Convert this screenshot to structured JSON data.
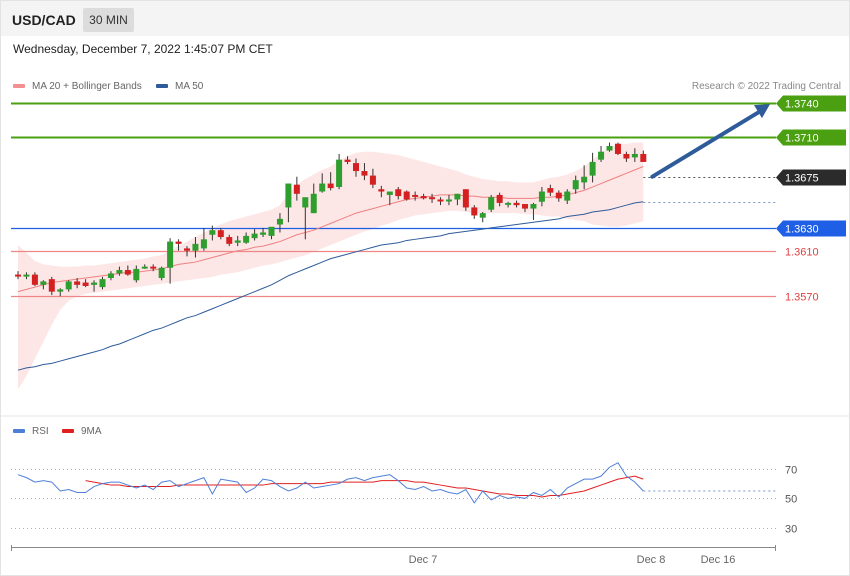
{
  "header": {
    "symbol": "USD/CAD",
    "timeframe": "30 MIN"
  },
  "timestamp": "Wednesday, December 7, 2022 1:45:07 PM CET",
  "legend": {
    "ma20": {
      "label": "MA 20 + Bollinger Bands",
      "color": "#f08080"
    },
    "ma50": {
      "label": "MA 50",
      "color": "#2f5b9a"
    }
  },
  "credit": "Research © 2022 Trading Central",
  "rsi_legend": {
    "rsi": {
      "label": "RSI",
      "color": "#4f7fd8"
    },
    "ma9": {
      "label": "9MA",
      "color": "#e02020"
    }
  },
  "colors": {
    "up": "#2e9e2e",
    "down": "#d42020",
    "resistance": "#4aa010",
    "support_blue": "#1e5fe6",
    "support_red": "#e04040"
  },
  "chart_data": [
    {
      "type": "candlestick",
      "y_range": [
        1.347,
        1.376
      ],
      "x_labels": [
        "Dec 7",
        "Dec 8",
        "Dec 16"
      ],
      "levels": [
        {
          "label": "1.3740",
          "value": 1.374,
          "style": "resistance"
        },
        {
          "label": "1.3710",
          "value": 1.371,
          "style": "resistance"
        },
        {
          "label": "1.3675",
          "value": 1.3675,
          "style": "current"
        },
        {
          "label": "1.3630",
          "value": 1.363,
          "style": "support_blue"
        },
        {
          "label": "1.3610",
          "value": 1.361,
          "style": "support_red"
        },
        {
          "label": "1.3570",
          "value": 1.357,
          "style": "support_red"
        }
      ],
      "candles": [
        [
          1.3589,
          1.3592,
          1.3585,
          1.3588
        ],
        [
          1.3588,
          1.3591,
          1.3585,
          1.3589
        ],
        [
          1.3589,
          1.3591,
          1.3579,
          1.358
        ],
        [
          1.358,
          1.3584,
          1.3576,
          1.3583
        ],
        [
          1.3585,
          1.3587,
          1.3571,
          1.3574
        ],
        [
          1.3574,
          1.3577,
          1.357,
          1.3576
        ],
        [
          1.3576,
          1.3584,
          1.3574,
          1.3583
        ],
        [
          1.3583,
          1.3586,
          1.3577,
          1.358
        ],
        [
          1.3582,
          1.3585,
          1.3578,
          1.3579
        ],
        [
          1.358,
          1.3584,
          1.3574,
          1.3582
        ],
        [
          1.3578,
          1.3587,
          1.3576,
          1.3585
        ],
        [
          1.3586,
          1.3592,
          1.3584,
          1.359
        ],
        [
          1.359,
          1.3596,
          1.3588,
          1.3593
        ],
        [
          1.3593,
          1.3597,
          1.3588,
          1.3589
        ],
        [
          1.3584,
          1.3597,
          1.3582,
          1.3594
        ],
        [
          1.3596,
          1.3598,
          1.3594,
          1.3596
        ],
        [
          1.3596,
          1.3598,
          1.3592,
          1.3595
        ],
        [
          1.3586,
          1.3596,
          1.3584,
          1.3595
        ],
        [
          1.3595,
          1.3621,
          1.3581,
          1.3618
        ],
        [
          1.3618,
          1.362,
          1.361,
          1.3616
        ],
        [
          1.3612,
          1.3614,
          1.3605,
          1.361
        ],
        [
          1.361,
          1.3622,
          1.3604,
          1.3616
        ],
        [
          1.3612,
          1.363,
          1.361,
          1.362
        ],
        [
          1.3624,
          1.3632,
          1.3619,
          1.3628
        ],
        [
          1.3628,
          1.363,
          1.362,
          1.3622
        ],
        [
          1.3622,
          1.3624,
          1.3614,
          1.3616
        ],
        [
          1.3617,
          1.3623,
          1.3614,
          1.3619
        ],
        [
          1.3617,
          1.3626,
          1.3616,
          1.3623
        ],
        [
          1.3621,
          1.3629,
          1.3619,
          1.3625
        ],
        [
          1.3624,
          1.363,
          1.3622,
          1.3626
        ],
        [
          1.3623,
          1.363,
          1.362,
          1.3631
        ],
        [
          1.3633,
          1.3643,
          1.3626,
          1.3638
        ],
        [
          1.3648,
          1.3669,
          1.3635,
          1.3669
        ],
        [
          1.3668,
          1.3675,
          1.3654,
          1.366
        ],
        [
          1.3648,
          1.3656,
          1.362,
          1.3657
        ],
        [
          1.3643,
          1.3669,
          1.3643,
          1.366
        ],
        [
          1.3662,
          1.3678,
          1.3661,
          1.3669
        ],
        [
          1.3669,
          1.3679,
          1.3663,
          1.3665
        ],
        [
          1.3666,
          1.3695,
          1.3664,
          1.369
        ],
        [
          1.369,
          1.3693,
          1.3686,
          1.3688
        ],
        [
          1.3687,
          1.3691,
          1.3675,
          1.368
        ],
        [
          1.368,
          1.3687,
          1.3672,
          1.3676
        ],
        [
          1.3676,
          1.3682,
          1.3665,
          1.3668
        ],
        [
          1.3664,
          1.3667,
          1.3657,
          1.3662
        ],
        [
          1.3659,
          1.3662,
          1.365,
          1.3662
        ],
        [
          1.3664,
          1.3666,
          1.3655,
          1.3658
        ],
        [
          1.3662,
          1.3663,
          1.3654,
          1.3655
        ],
        [
          1.3659,
          1.3662,
          1.3654,
          1.3658
        ],
        [
          1.3658,
          1.366,
          1.3655,
          1.3656
        ],
        [
          1.3657,
          1.366,
          1.3652,
          1.3656
        ],
        [
          1.3655,
          1.3657,
          1.365,
          1.3654
        ],
        [
          1.3654,
          1.3659,
          1.365,
          1.3655
        ],
        [
          1.3655,
          1.366,
          1.365,
          1.366
        ],
        [
          1.3664,
          1.3664,
          1.3645,
          1.3648
        ],
        [
          1.3648,
          1.365,
          1.3638,
          1.3641
        ],
        [
          1.3639,
          1.3644,
          1.3635,
          1.3643
        ],
        [
          1.3646,
          1.3659,
          1.3644,
          1.3657
        ],
        [
          1.3659,
          1.3661,
          1.3649,
          1.3652
        ],
        [
          1.3651,
          1.3653,
          1.3648,
          1.3652
        ],
        [
          1.3652,
          1.3654,
          1.3648,
          1.365
        ],
        [
          1.3651,
          1.3651,
          1.3644,
          1.3647
        ],
        [
          1.3647,
          1.3652,
          1.3637,
          1.3651
        ],
        [
          1.3653,
          1.3666,
          1.3649,
          1.3662
        ],
        [
          1.3665,
          1.3668,
          1.3658,
          1.3661
        ],
        [
          1.3661,
          1.3663,
          1.3653,
          1.3656
        ],
        [
          1.3654,
          1.3664,
          1.3651,
          1.3662
        ],
        [
          1.3664,
          1.3676,
          1.366,
          1.3672
        ],
        [
          1.367,
          1.3685,
          1.3664,
          1.3675
        ],
        [
          1.3676,
          1.3696,
          1.367,
          1.3688
        ],
        [
          1.369,
          1.3702,
          1.3688,
          1.3697
        ],
        [
          1.3698,
          1.3705,
          1.3697,
          1.3702
        ],
        [
          1.3704,
          1.3705,
          1.3694,
          1.3695
        ],
        [
          1.3695,
          1.3697,
          1.3688,
          1.3691
        ],
        [
          1.3692,
          1.37,
          1.3688,
          1.3695
        ],
        [
          1.3695,
          1.3698,
          1.3688,
          1.3688
        ]
      ],
      "ma20": [
        1.3574,
        1.3576,
        1.3578,
        1.358,
        1.3582,
        1.3583,
        1.3584,
        1.3585,
        1.3586,
        1.3587,
        1.3588,
        1.3589,
        1.359,
        1.3591,
        1.3591,
        1.3592,
        1.3593,
        1.3594,
        1.3596,
        1.3598,
        1.3599,
        1.36,
        1.3602,
        1.3604,
        1.3606,
        1.3608,
        1.361,
        1.3611,
        1.3613,
        1.3614,
        1.3616,
        1.3618,
        1.3621,
        1.3624,
        1.3626,
        1.3628,
        1.3631,
        1.3634,
        1.3637,
        1.364,
        1.3643,
        1.3645,
        1.3647,
        1.3649,
        1.3651,
        1.3653,
        1.3655,
        1.3656,
        1.3657,
        1.3658,
        1.3659,
        1.3659,
        1.3659,
        1.3658,
        1.3658,
        1.3657,
        1.3657,
        1.3657,
        1.3656,
        1.3656,
        1.3656,
        1.3656,
        1.3657,
        1.3657,
        1.3658,
        1.3659,
        1.3661,
        1.3663,
        1.3666,
        1.3669,
        1.3672,
        1.3675,
        1.3678,
        1.3681,
        1.3684
      ],
      "bb_upper": [
        1.3615,
        1.3608,
        1.3601,
        1.3598,
        1.3597,
        1.3596,
        1.3596,
        1.3596,
        1.3597,
        1.3597,
        1.3598,
        1.3599,
        1.36,
        1.3601,
        1.3602,
        1.3603,
        1.3605,
        1.3606,
        1.361,
        1.3614,
        1.3618,
        1.3622,
        1.3626,
        1.363,
        1.3633,
        1.3636,
        1.3638,
        1.364,
        1.3642,
        1.3644,
        1.3646,
        1.365,
        1.366,
        1.3668,
        1.3673,
        1.3677,
        1.3681,
        1.3684,
        1.3689,
        1.3693,
        1.3696,
        1.3697,
        1.3697,
        1.3696,
        1.3695,
        1.3694,
        1.3692,
        1.369,
        1.3688,
        1.3686,
        1.3684,
        1.3682,
        1.368,
        1.3677,
        1.3675,
        1.3673,
        1.3672,
        1.3671,
        1.3671,
        1.367,
        1.367,
        1.367,
        1.3672,
        1.3674,
        1.3675,
        1.3677,
        1.368,
        1.3684,
        1.369,
        1.3696,
        1.3701,
        1.3703,
        1.3704,
        1.3705,
        1.3705
      ],
      "bb_lower": [
        1.3488,
        1.35,
        1.3515,
        1.353,
        1.3545,
        1.3558,
        1.3566,
        1.357,
        1.3572,
        1.3573,
        1.3574,
        1.3575,
        1.3576,
        1.3577,
        1.3578,
        1.3579,
        1.358,
        1.3581,
        1.3582,
        1.3583,
        1.3584,
        1.3585,
        1.3586,
        1.3587,
        1.3589,
        1.359,
        1.3591,
        1.3593,
        1.3595,
        1.3597,
        1.3598,
        1.36,
        1.3602,
        1.3604,
        1.3606,
        1.3609,
        1.3612,
        1.3615,
        1.3618,
        1.3621,
        1.3624,
        1.3627,
        1.3629,
        1.3632,
        1.3634,
        1.3637,
        1.3639,
        1.3641,
        1.3642,
        1.3643,
        1.3644,
        1.3645,
        1.3645,
        1.3644,
        1.3643,
        1.3643,
        1.3643,
        1.3643,
        1.3643,
        1.3643,
        1.3642,
        1.3642,
        1.3641,
        1.364,
        1.364,
        1.3638,
        1.3637,
        1.3636,
        1.3633,
        1.3632,
        1.3631,
        1.3631,
        1.3632,
        1.3634,
        1.3636
      ],
      "ma50": [
        1.3505,
        1.3507,
        1.3508,
        1.351,
        1.3511,
        1.3513,
        1.3515,
        1.3517,
        1.3519,
        1.3521,
        1.3523,
        1.3526,
        1.3528,
        1.3531,
        1.3534,
        1.3537,
        1.354,
        1.3542,
        1.3545,
        1.3548,
        1.3551,
        1.3553,
        1.3556,
        1.3559,
        1.3562,
        1.3565,
        1.3568,
        1.3571,
        1.3574,
        1.3577,
        1.358,
        1.3584,
        1.3588,
        1.3591,
        1.3594,
        1.3597,
        1.36,
        1.3603,
        1.3605,
        1.3607,
        1.3609,
        1.3611,
        1.3613,
        1.3615,
        1.3616,
        1.3617,
        1.3619,
        1.362,
        1.3621,
        1.3622,
        1.3623,
        1.3625,
        1.3626,
        1.3627,
        1.3628,
        1.3629,
        1.363,
        1.3631,
        1.3632,
        1.3633,
        1.3634,
        1.3635,
        1.3636,
        1.3637,
        1.3638,
        1.364,
        1.3641,
        1.3642,
        1.3644,
        1.3645,
        1.3646,
        1.3648,
        1.365,
        1.3652,
        1.3653
      ],
      "projection": [
        [
          1.3675
        ],
        [
          1.3737
        ]
      ]
    },
    {
      "type": "line",
      "y_range": [
        22,
        88
      ],
      "y_ticks": [
        70,
        50,
        30
      ],
      "series": [
        {
          "name": "RSI",
          "values": [
            66,
            64,
            61,
            62,
            61,
            55,
            56,
            54,
            54,
            58,
            60,
            61,
            61,
            59,
            57,
            59,
            56,
            61,
            62,
            58,
            60,
            62,
            64,
            53,
            63,
            62,
            61,
            54,
            57,
            63,
            62,
            58,
            55,
            57,
            61,
            57,
            58,
            59,
            60,
            63,
            64,
            62,
            64,
            65,
            66,
            62,
            57,
            56,
            58,
            55,
            56,
            54,
            53,
            56,
            47,
            55,
            49,
            52,
            50,
            51,
            50,
            54,
            52,
            56,
            51,
            57,
            60,
            63,
            63,
            65,
            71,
            74,
            65,
            61,
            55
          ]
        },
        {
          "name": "9MA",
          "values": [
            null,
            null,
            null,
            null,
            null,
            null,
            null,
            null,
            62,
            61,
            60,
            59,
            59,
            58,
            58,
            58,
            58,
            58,
            58,
            59,
            59,
            59,
            59,
            59,
            59,
            59,
            59,
            59,
            59,
            59,
            60,
            60,
            60,
            60,
            60,
            60,
            60,
            61,
            61,
            61,
            61,
            61,
            61,
            62,
            62,
            62,
            62,
            61,
            61,
            60,
            59,
            58,
            57,
            57,
            56,
            55,
            54,
            53,
            53,
            52,
            52,
            52,
            51,
            52,
            52,
            53,
            54,
            55,
            57,
            59,
            61,
            63,
            64,
            65,
            63
          ]
        }
      ]
    }
  ]
}
